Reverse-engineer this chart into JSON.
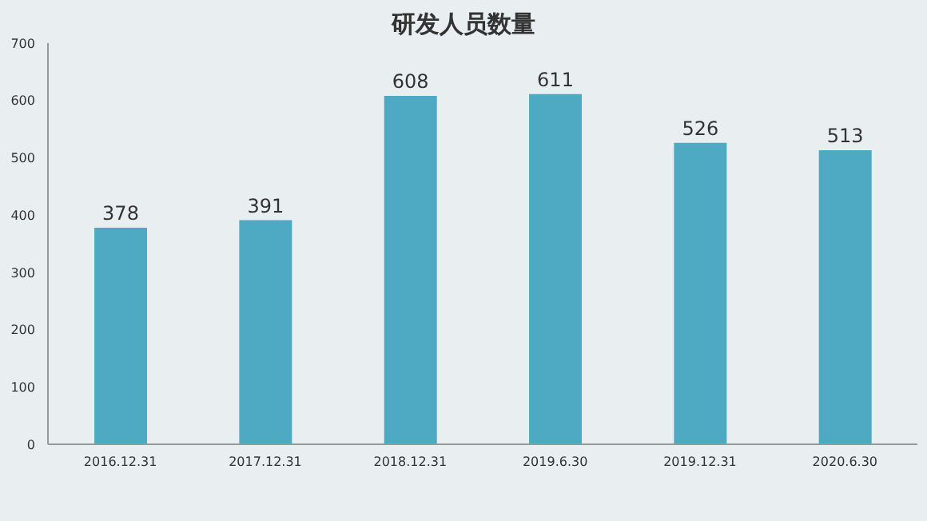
{
  "chart_data": {
    "type": "bar",
    "title": "研发人员数量",
    "categories": [
      "2016.12.31",
      "2017.12.31",
      "2018.12.31",
      "2019.6.30",
      "2019.12.31",
      "2020.6.30"
    ],
    "values": [
      378,
      391,
      608,
      611,
      526,
      513
    ],
    "color": "#4eaac2",
    "ylim": [
      0,
      700
    ],
    "yticks": [
      0,
      100,
      200,
      300,
      400,
      500,
      600,
      700
    ],
    "grid": false,
    "data_labels": true
  }
}
